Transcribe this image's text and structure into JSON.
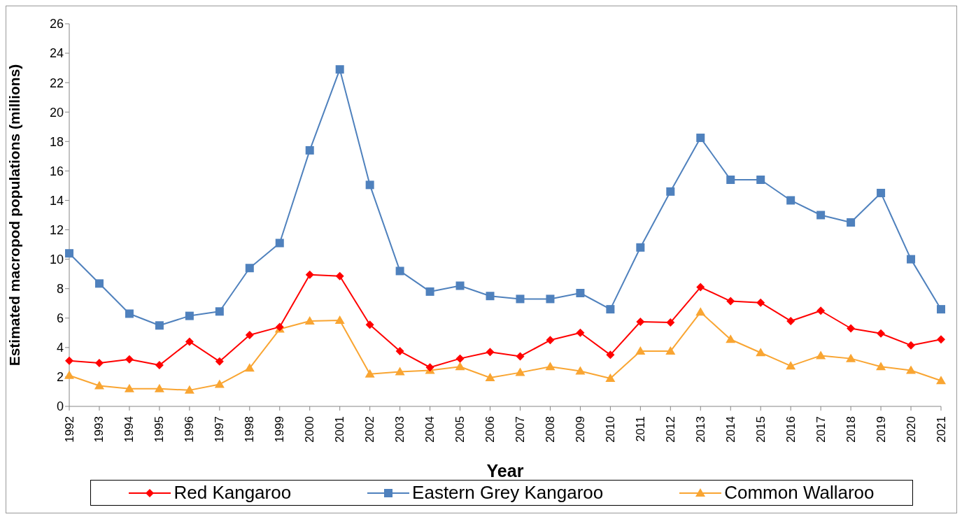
{
  "chart_data": {
    "type": "line",
    "xlabel": "Year",
    "ylabel": "Estimated macropod populations (millions)",
    "categories": [
      "1992",
      "1993",
      "1994",
      "1995",
      "1996",
      "1997",
      "1998",
      "1999",
      "2000",
      "2001",
      "2002",
      "2003",
      "2004",
      "2005",
      "2006",
      "2007",
      "2008",
      "2009",
      "2010",
      "2011",
      "2012",
      "2013",
      "2014",
      "2015",
      "2016",
      "2017",
      "2018",
      "2019",
      "2020",
      "2021"
    ],
    "series": [
      {
        "name": "Red Kangaroo",
        "color": "#ff0000",
        "marker": "diamond",
        "values": [
          3.1,
          2.95,
          3.2,
          2.8,
          4.4,
          3.05,
          4.85,
          5.4,
          8.95,
          8.85,
          5.55,
          3.75,
          2.65,
          3.25,
          3.7,
          3.4,
          4.5,
          5.0,
          3.5,
          5.75,
          5.7,
          8.1,
          7.15,
          7.05,
          5.8,
          6.5,
          5.3,
          4.95,
          4.15,
          4.55
        ]
      },
      {
        "name": "Eastern Grey Kangaroo",
        "color": "#4f81bd",
        "marker": "square",
        "values": [
          10.4,
          8.35,
          6.3,
          5.5,
          6.15,
          6.45,
          9.4,
          11.1,
          17.4,
          22.9,
          15.05,
          9.2,
          7.8,
          8.2,
          7.5,
          7.3,
          7.3,
          7.7,
          6.6,
          10.8,
          14.6,
          18.25,
          15.4,
          15.4,
          14.0,
          13.0,
          12.5,
          14.5,
          10.0,
          6.6
        ]
      },
      {
        "name": "Common Wallaroo",
        "color": "#f9a532",
        "marker": "triangle",
        "values": [
          2.1,
          1.4,
          1.2,
          1.2,
          1.1,
          1.5,
          2.6,
          5.25,
          5.8,
          5.85,
          2.2,
          2.35,
          2.45,
          2.7,
          1.95,
          2.3,
          2.7,
          2.4,
          1.9,
          3.75,
          3.75,
          6.4,
          4.55,
          3.65,
          2.75,
          3.45,
          3.25,
          2.7,
          2.45,
          1.75
        ]
      }
    ],
    "ylim": [
      0,
      26
    ],
    "yticks": [
      0,
      2,
      4,
      6,
      8,
      10,
      12,
      14,
      16,
      18,
      20,
      22,
      24,
      26
    ],
    "grid": false,
    "legend": "bottom",
    "line_style": "solid"
  }
}
